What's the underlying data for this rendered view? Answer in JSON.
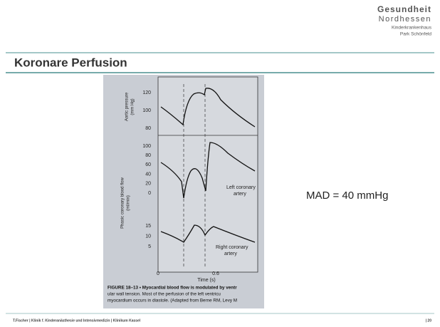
{
  "header": {
    "brand": "Gesundheit",
    "brand_sub": "Nordhessen",
    "clinic": "Kinderkrankenhaus",
    "place": "Park Schönfeld"
  },
  "slide": {
    "title": "Koronare Perfusion",
    "note": "MAD = 40 mmHg"
  },
  "figure": {
    "top_panel": {
      "y_label_1": "Aortic pressure",
      "y_label_2": "(mm Hg)",
      "ticks": [
        120,
        100,
        80
      ]
    },
    "bottom_panel": {
      "y_label_1": "Phasic coronary blood flow",
      "y_label_2": "(ml/min)",
      "left_ticks": [
        100,
        80,
        60,
        40,
        20,
        0
      ],
      "right_ticks": [
        15,
        10,
        5
      ],
      "left_label_1": "Left coronary",
      "left_label_2": "artery",
      "right_label_1": "Right coronary",
      "right_label_2": "artery"
    },
    "x_ticks": [
      0,
      0.6
    ],
    "x_label": "Time (s)",
    "caption": [
      "FIGURE 18–13 • Myocardial blood flow is modulated by ventr",
      "ular wall tension. Most of the perfusion of the left ventricu",
      "myocardium occurs in diastole. (Adapted from Berne RM, Levy M"
    ]
  },
  "footer": {
    "left": "T.Fischer | Klinik f. Kinderanästhesie und Intensivmedizin | Klinikum Kassel",
    "right": "| 20"
  }
}
